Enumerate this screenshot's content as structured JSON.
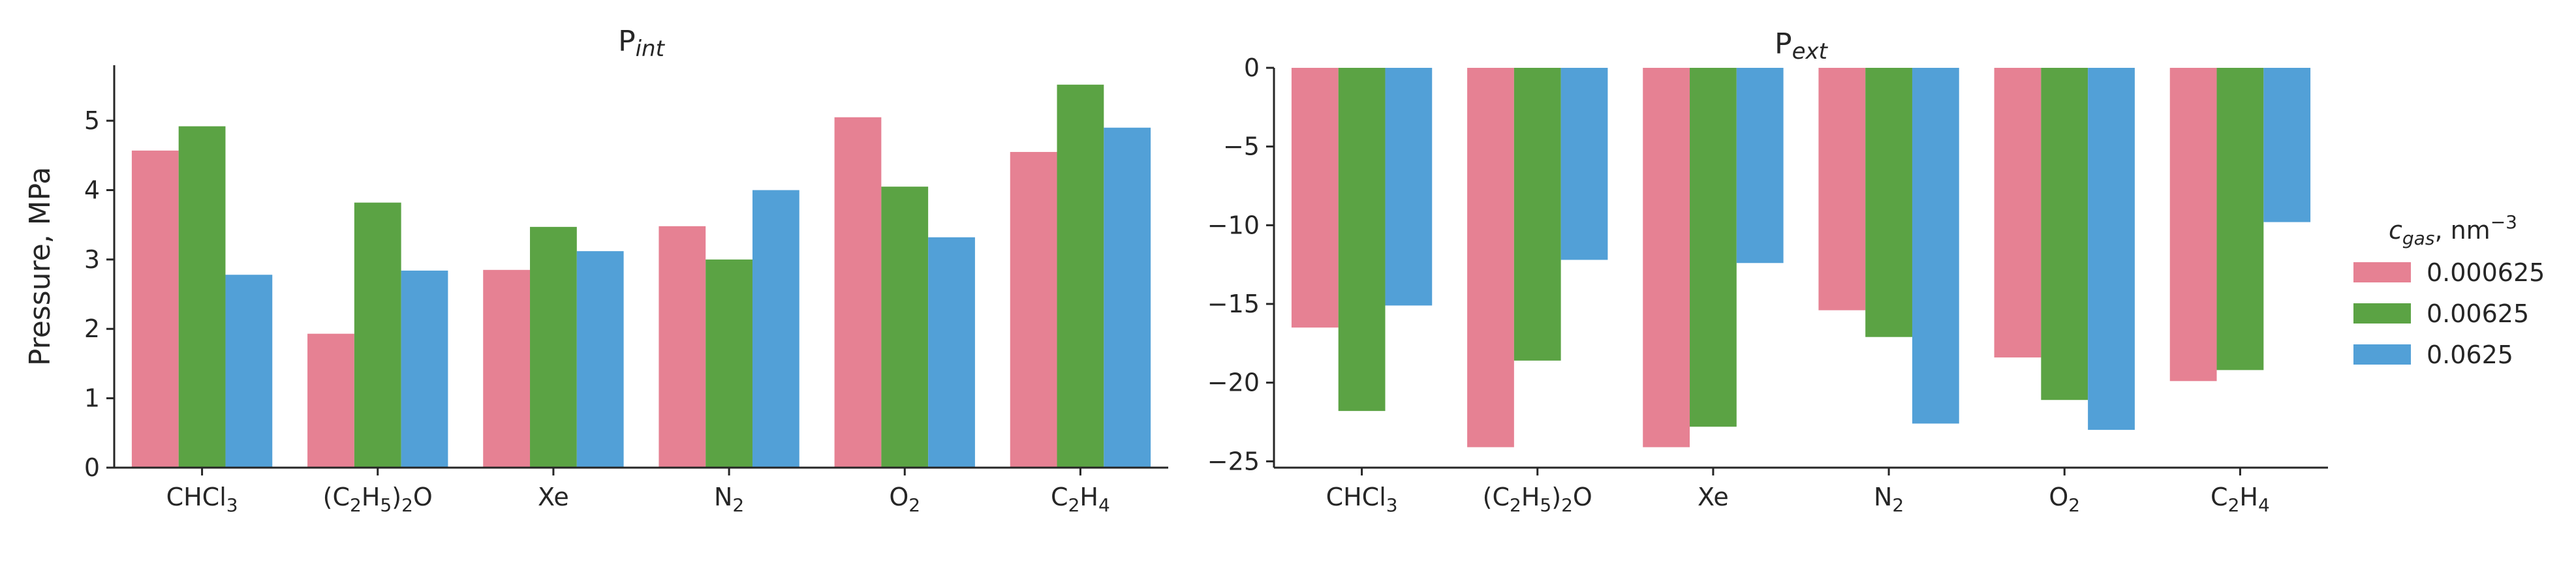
{
  "chart_data": [
    {
      "type": "bar",
      "title": "P",
      "title_sub": "int",
      "ylabel": "Pressure, MPa",
      "xlabel": "",
      "ylim": [
        0,
        5.8
      ],
      "yticks": [
        0,
        1,
        2,
        3,
        4,
        5
      ],
      "ytick_labels": [
        "0",
        "1",
        "2",
        "3",
        "4",
        "5"
      ],
      "categories": [
        [
          {
            "t": "CHCl"
          },
          {
            "t": "3",
            "sub": true
          }
        ],
        [
          {
            "t": "(C"
          },
          {
            "t": "2",
            "sub": true
          },
          {
            "t": "H"
          },
          {
            "t": "5",
            "sub": true
          },
          {
            "t": ")"
          },
          {
            "t": "2",
            "sub": true
          },
          {
            "t": "O"
          }
        ],
        [
          {
            "t": "Xe"
          }
        ],
        [
          {
            "t": "N"
          },
          {
            "t": "2",
            "sub": true
          }
        ],
        [
          {
            "t": "O"
          },
          {
            "t": "2",
            "sub": true
          }
        ],
        [
          {
            "t": "C"
          },
          {
            "t": "2",
            "sub": true
          },
          {
            "t": "H"
          },
          {
            "t": "4",
            "sub": true
          }
        ]
      ],
      "series": [
        {
          "name": "0.000625",
          "color": "#e68193",
          "values": [
            4.57,
            1.93,
            2.85,
            3.48,
            5.05,
            4.55
          ]
        },
        {
          "name": "0.00625",
          "color": "#5ba344",
          "values": [
            4.92,
            3.82,
            3.47,
            3.0,
            4.05,
            5.52
          ]
        },
        {
          "name": "0.0625",
          "color": "#52a0d7",
          "values": [
            2.78,
            2.84,
            3.12,
            4.0,
            3.32,
            4.9
          ]
        }
      ],
      "grid": false
    },
    {
      "type": "bar",
      "title": "P",
      "title_sub": "ext",
      "ylabel": "",
      "xlabel": "",
      "ylim": [
        -25.4,
        0
      ],
      "yticks": [
        0,
        -5,
        -10,
        -15,
        -20,
        -25
      ],
      "ytick_labels": [
        "0",
        "−5",
        "−10",
        "−15",
        "−20",
        "−25"
      ],
      "categories": [
        [
          {
            "t": "CHCl"
          },
          {
            "t": "3",
            "sub": true
          }
        ],
        [
          {
            "t": "(C"
          },
          {
            "t": "2",
            "sub": true
          },
          {
            "t": "H"
          },
          {
            "t": "5",
            "sub": true
          },
          {
            "t": ")"
          },
          {
            "t": "2",
            "sub": true
          },
          {
            "t": "O"
          }
        ],
        [
          {
            "t": "Xe"
          }
        ],
        [
          {
            "t": "N"
          },
          {
            "t": "2",
            "sub": true
          }
        ],
        [
          {
            "t": "O"
          },
          {
            "t": "2",
            "sub": true
          }
        ],
        [
          {
            "t": "C"
          },
          {
            "t": "2",
            "sub": true
          },
          {
            "t": "H"
          },
          {
            "t": "4",
            "sub": true
          }
        ]
      ],
      "series": [
        {
          "name": "0.000625",
          "color": "#e68193",
          "values": [
            -16.5,
            -24.1,
            -24.1,
            -15.4,
            -18.4,
            -19.9
          ]
        },
        {
          "name": "0.00625",
          "color": "#5ba344",
          "values": [
            -21.8,
            -18.6,
            -22.8,
            -17.1,
            -21.1,
            -19.2
          ]
        },
        {
          "name": "0.0625",
          "color": "#52a0d7",
          "values": [
            -15.1,
            -12.2,
            -12.4,
            -22.6,
            -23.0,
            -9.8
          ]
        }
      ],
      "grid": false
    }
  ],
  "legend": {
    "title_main": "c",
    "title_sub": "gas",
    "title_rest": ", nm",
    "title_sup": "−3",
    "placement": "right",
    "entries": [
      {
        "label": "0.000625",
        "color": "#e68193"
      },
      {
        "label": "0.00625",
        "color": "#5ba344"
      },
      {
        "label": "0.0625",
        "color": "#52a0d7"
      }
    ]
  }
}
